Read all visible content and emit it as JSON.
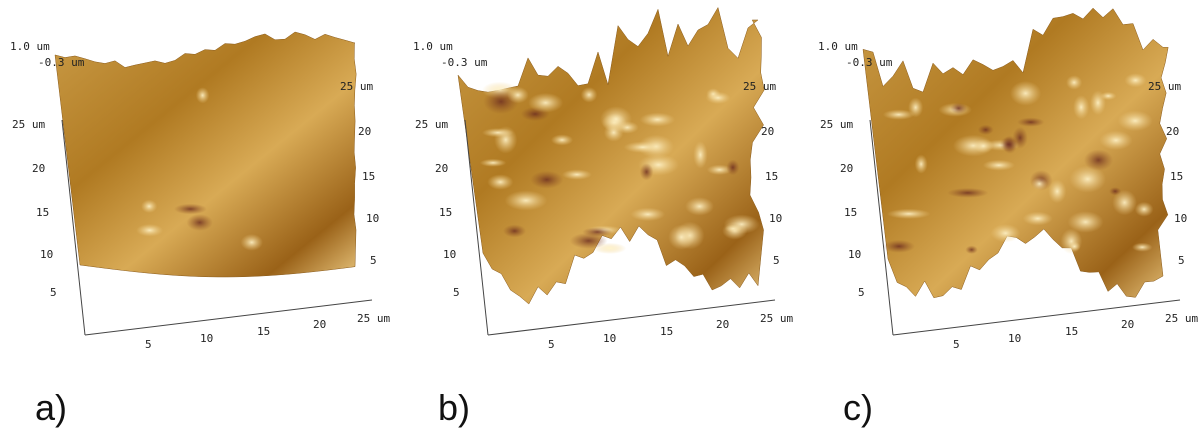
{
  "panels": [
    {
      "label": "a)",
      "z_axis": [
        "1.0 um",
        "-0.3 um"
      ],
      "y_axis": [
        "25 um",
        "20",
        "15",
        "10",
        "5"
      ],
      "x_axis": [
        "5",
        "10",
        "15",
        "20",
        "25 um"
      ],
      "right_axis": [
        "25 um",
        "20",
        "15",
        "10",
        "5"
      ]
    },
    {
      "label": "b)",
      "z_axis": [
        "1.0 um",
        "-0.3 um"
      ],
      "y_axis": [
        "25 um",
        "20",
        "15",
        "10",
        "5"
      ],
      "x_axis": [
        "5",
        "10",
        "15",
        "20",
        "25 um"
      ],
      "right_axis": [
        "25 um",
        "20",
        "15",
        "10",
        "5"
      ]
    },
    {
      "label": "c)",
      "z_axis": [
        "1.0 um",
        "-0.3 um"
      ],
      "y_axis": [
        "25 um",
        "20",
        "15",
        "10",
        "5"
      ],
      "x_axis": [
        "5",
        "10",
        "15",
        "20",
        "25 um"
      ],
      "right_axis": [
        "25 um",
        "20",
        "15",
        "10",
        "5"
      ]
    }
  ]
}
